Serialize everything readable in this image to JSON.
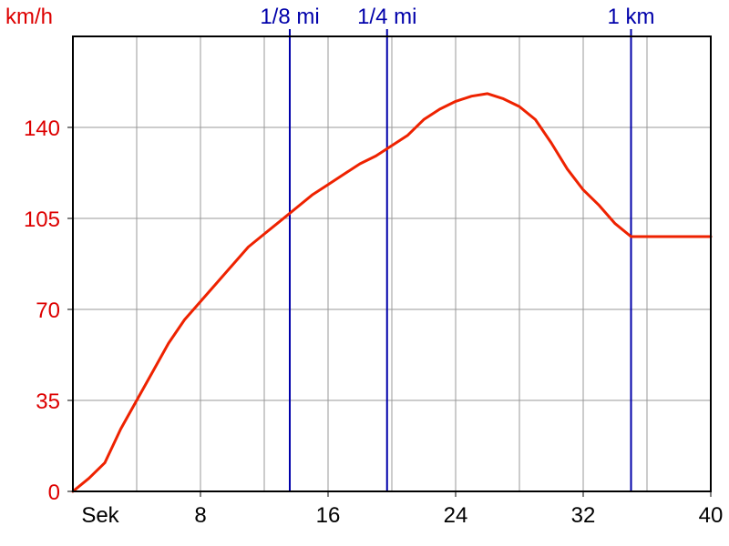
{
  "chart_data": {
    "type": "line",
    "ylabel": "km/h",
    "xlabel": "Sek",
    "xlim": [
      0,
      40
    ],
    "ylim": [
      0,
      175
    ],
    "x_ticks": [
      {
        "value": 8,
        "label": "8"
      },
      {
        "value": 16,
        "label": "16"
      },
      {
        "value": 24,
        "label": "24"
      },
      {
        "value": 32,
        "label": "32"
      },
      {
        "value": 40,
        "label": "40"
      }
    ],
    "y_ticks": [
      {
        "value": 0,
        "label": "0"
      },
      {
        "value": 35,
        "label": "35"
      },
      {
        "value": 70,
        "label": "70"
      },
      {
        "value": 105,
        "label": "105"
      },
      {
        "value": 140,
        "label": "140"
      }
    ],
    "grid": true,
    "markers": [
      {
        "x": 13.6,
        "label": "1/8 mi"
      },
      {
        "x": 19.7,
        "label": "1/4 mi"
      },
      {
        "x": 35.0,
        "label": "1 km"
      }
    ],
    "series": [
      {
        "x": [
          0,
          1,
          2,
          3,
          4,
          5,
          6,
          7,
          8,
          9,
          10,
          11,
          12,
          13,
          14,
          15,
          16,
          17,
          18,
          19,
          20,
          21,
          22,
          23,
          24,
          25,
          26,
          27,
          28,
          29,
          30,
          31,
          32,
          33,
          34,
          35,
          36,
          37,
          38,
          39,
          40
        ],
        "values": [
          0,
          5,
          11,
          24,
          35,
          46,
          57,
          66,
          73,
          80,
          87,
          94,
          99,
          104,
          109,
          114,
          118,
          122,
          126,
          129,
          133,
          137,
          143,
          147,
          150,
          152,
          153,
          151,
          148,
          143,
          134,
          124,
          116,
          110,
          103,
          98,
          98,
          98,
          98,
          98,
          98
        ],
        "color": "#ee2200"
      }
    ],
    "colors": {
      "line": "#ee2200",
      "marker": "#0000aa",
      "y_text": "#dd0000",
      "marker_text": "#0000aa",
      "grid": "#999999",
      "axis": "#000000"
    }
  }
}
